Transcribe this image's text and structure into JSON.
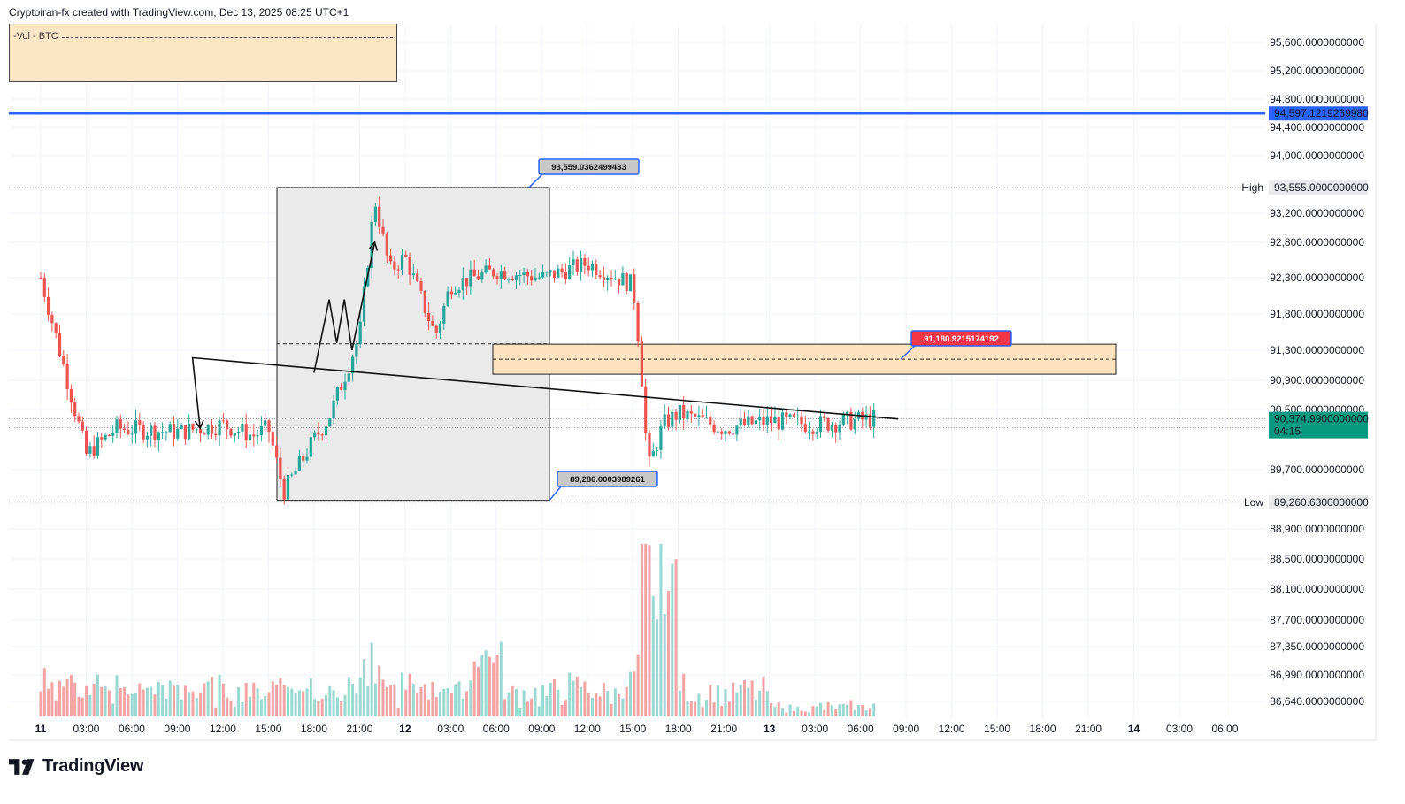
{
  "header": {
    "text": "Cryptoiran-fx created with TradingView.com, Dec 13, 2025 08:25 UTC+1"
  },
  "legend": {
    "label": "-Vol - BTC"
  },
  "brand": {
    "name": "TradingView",
    "logo_icon": "tradingview-logo-icon"
  },
  "colors": {
    "up": "#26a69a",
    "down": "#ef5350",
    "vol_up": "#9ad8d2",
    "vol_down": "#f3a3a3",
    "blue_line": "#2962ff",
    "zone": "#fde3bd",
    "zone_border": "#222222",
    "range_box": "#e6e6e6",
    "callout_red": "#f23645",
    "callout_gray": "#c8c8c8"
  },
  "chart_data": {
    "type": "candlestick",
    "symbol": "BTC",
    "y_axis_ticks": [
      "95,600.0000000000",
      "95,200.0000000000",
      "94,800.0000000000",
      "94,400.0000000000",
      "94,000.0000000000",
      "93,200.0000000000",
      "92,800.0000000000",
      "92,300.0000000000",
      "91,800.0000000000",
      "91,300.0000000000",
      "90,900.0000000000",
      "90,500.0000000000",
      "89,700.0000000000",
      "88,900.0000000000",
      "88,500.0000000000",
      "88,100.0000000000",
      "87,700.0000000000",
      "87,350.0000000000",
      "86,990.0000000000",
      "86,640.0000000000"
    ],
    "x_axis_ticks": [
      "11",
      "03:00",
      "06:00",
      "09:00",
      "12:00",
      "15:00",
      "18:00",
      "21:00",
      "12",
      "03:00",
      "06:00",
      "09:00",
      "12:00",
      "15:00",
      "18:00",
      "21:00",
      "13",
      "03:00",
      "06:00",
      "09:00",
      "12:00",
      "15:00",
      "18:00",
      "21:00",
      "14",
      "03:00",
      "06:00"
    ],
    "high_label": "High",
    "high_value": "93,555.0000000000",
    "low_label": "Low",
    "low_value": "89,260.6300000000",
    "current_price": "90,374.9900000000",
    "countdown": "04:15",
    "horizontal_line_value": "94,597.1219269980",
    "callout_top": "93,559.0362499433",
    "callout_bottom": "89,286.0003989261",
    "callout_zone": "91,180.9215174192",
    "price_path": [
      [
        "11",
        92300
      ],
      [
        "03:00",
        89900
      ],
      [
        "05:00",
        90250
      ],
      [
        "09:00",
        90200
      ],
      [
        "12:00",
        90300
      ],
      [
        "14:00",
        90150
      ],
      [
        "15:00",
        90250
      ],
      [
        "16:00",
        89400
      ],
      [
        "18:00",
        90100
      ],
      [
        "19:00",
        90400
      ],
      [
        "21:00",
        91500
      ],
      [
        "22:00",
        93400
      ],
      [
        "23:00",
        92400
      ],
      [
        "12",
        92600
      ],
      [
        "02:00",
        91500
      ],
      [
        "03:00",
        92200
      ],
      [
        "06:00",
        92400
      ],
      [
        "09:00",
        92300
      ],
      [
        "12:00",
        92500
      ],
      [
        "15:00",
        92200
      ],
      [
        "15:30",
        91200
      ],
      [
        "16:00",
        89700
      ],
      [
        "17:00",
        90300
      ],
      [
        "18:00",
        90450
      ],
      [
        "21:00",
        90250
      ],
      [
        "13",
        90350
      ],
      [
        "03:00",
        90300
      ],
      [
        "07:00",
        90380
      ]
    ],
    "projection_path": [
      [
        "09:00",
        90374
      ],
      [
        "10:00",
        91200
      ],
      [
        "10:30",
        90250
      ],
      [
        "18:00",
        91000
      ],
      [
        "19:00",
        92000
      ],
      [
        "19:30",
        91400
      ],
      [
        "20:00",
        92000
      ],
      [
        "20:30",
        91300
      ],
      [
        "22:00",
        92800
      ]
    ]
  }
}
